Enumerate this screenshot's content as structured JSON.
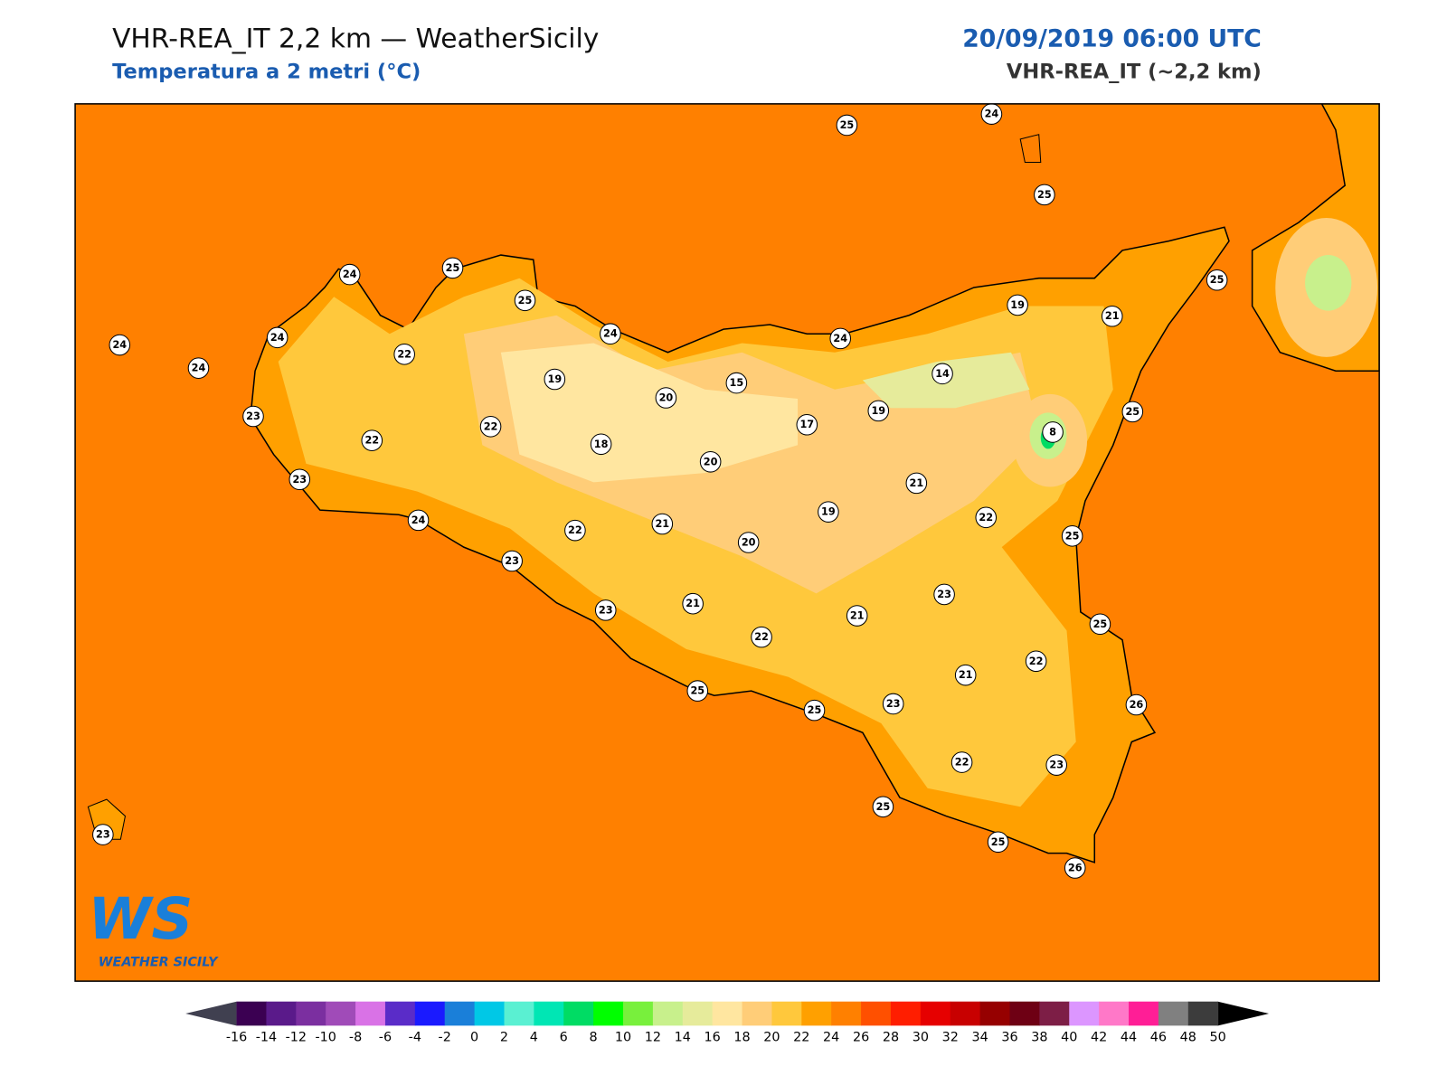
{
  "header": {
    "title": "VHR-REA_IT 2,2 km — WeatherSicily",
    "subtitle": "Temperatura a 2 metri (°C)",
    "date": "20/09/2019 06:00 UTC",
    "model": "VHR-REA_IT (~2,2 km)"
  },
  "map": {
    "background_color": "#ff8000",
    "stations": [
      25,
      24,
      25,
      24,
      25,
      25,
      24,
      24,
      24,
      22,
      24,
      19,
      24,
      19,
      21,
      25,
      15,
      20,
      14,
      19,
      17,
      25,
      8,
      23,
      22,
      22,
      18,
      20,
      23,
      21,
      24,
      19,
      22,
      21,
      22,
      20,
      25,
      23,
      23,
      21,
      23,
      21,
      25,
      22,
      22,
      21,
      25,
      23,
      25,
      26,
      22,
      23,
      23,
      25,
      25,
      26
    ]
  },
  "logo": {
    "mark": "WS",
    "name": "WEATHER SICILY"
  },
  "colorbar": {
    "ticks": [
      -16,
      -14,
      -12,
      -10,
      -8,
      -6,
      -4,
      -2,
      0,
      2,
      4,
      6,
      8,
      10,
      12,
      14,
      16,
      18,
      20,
      22,
      24,
      26,
      28,
      30,
      32,
      34,
      36,
      38,
      40,
      42,
      44,
      46,
      48,
      50
    ],
    "colors": [
      "#3b0052",
      "#5a1a8a",
      "#7b2fa0",
      "#a04bb8",
      "#d972e6",
      "#5a2cc8",
      "#1a1aff",
      "#1a7fd9",
      "#00c8e6",
      "#5af0d2",
      "#00e6b4",
      "#00dc64",
      "#00ff00",
      "#78f03c",
      "#c8f08c",
      "#e6eb9b",
      "#ffe6a0",
      "#ffcd78",
      "#ffc83c",
      "#ffa000",
      "#ff8000",
      "#ff5000",
      "#ff1e00",
      "#e60000",
      "#c80000",
      "#960000",
      "#6e0014",
      "#7d1e46",
      "#dc96ff",
      "#ff78c8",
      "#ff1e96",
      "#808080",
      "#3c3c3c"
    ],
    "under_color": "#404050",
    "over_color": "#000000"
  }
}
